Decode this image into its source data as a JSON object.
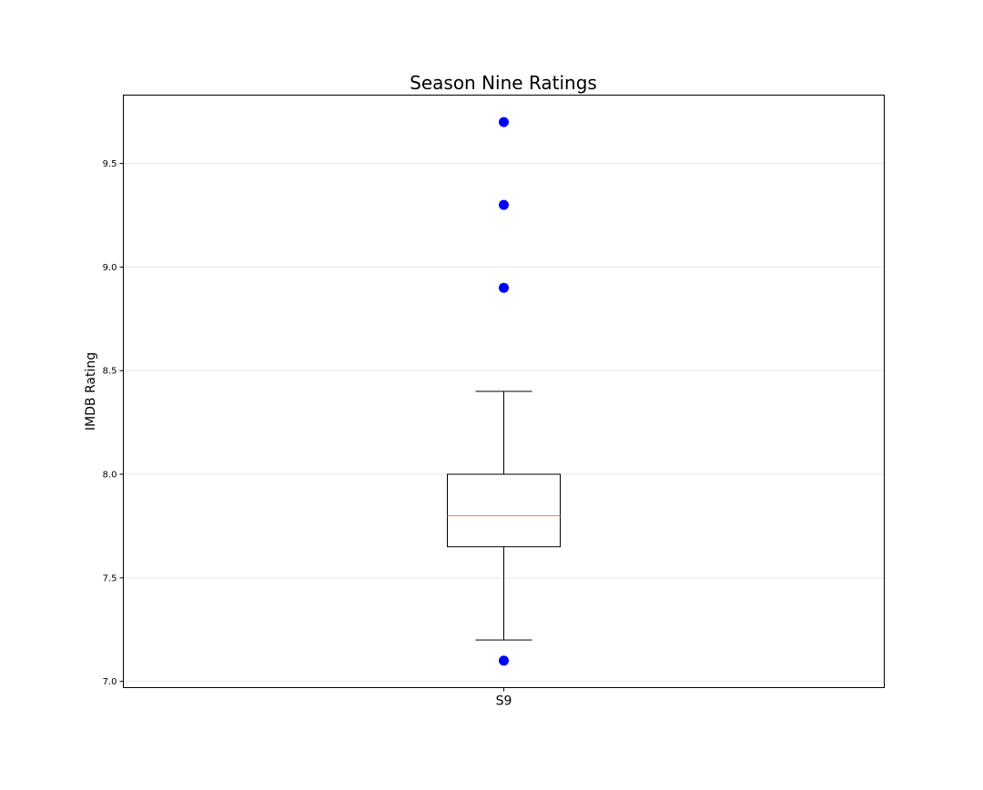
{
  "chart_data": {
    "type": "box",
    "title": "Season Nine Ratings",
    "xlabel": "",
    "ylabel": "IMDB Rating",
    "categories": [
      "S9"
    ],
    "ylim": [
      6.97,
      9.83
    ],
    "yticks": [
      7.0,
      7.5,
      8.0,
      8.5,
      9.0,
      9.5
    ],
    "ytick_labels": [
      "7.0",
      "7.5",
      "8.0",
      "8.5",
      "9.0",
      "9.5"
    ],
    "grid": "y",
    "series": [
      {
        "category": "S9",
        "whisker_low": 7.2,
        "q1": 7.65,
        "median": 7.8,
        "q3": 8.0,
        "whisker_high": 8.4,
        "outliers": [
          7.1,
          8.9,
          9.3,
          9.7
        ]
      }
    ],
    "colors": {
      "box": "#000000",
      "median": "#ff7f0e",
      "outlier": "#0000ff",
      "grid": "#e6e6e6"
    }
  }
}
